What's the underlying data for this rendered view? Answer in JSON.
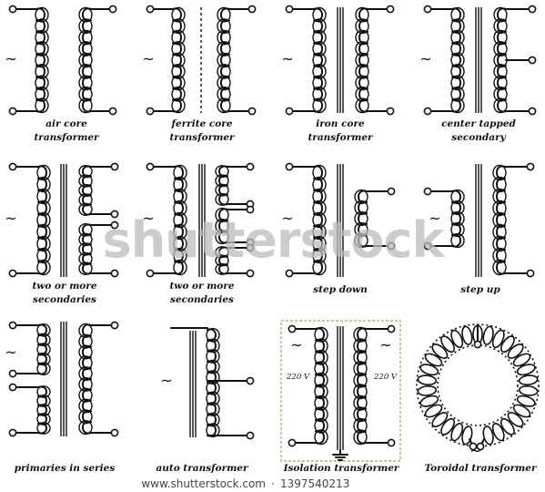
{
  "captions": {
    "air_core": [
      "air core",
      "transformer"
    ],
    "ferrite_core": [
      "ferrite core",
      "transformer"
    ],
    "iron_core": [
      "iron core",
      "transformer"
    ],
    "center_tapped": [
      "center tapped",
      "secondary"
    ],
    "two_or_more_1": [
      "two or more",
      "secondaries"
    ],
    "two_or_more_2": [
      "two or more",
      "secondaries"
    ],
    "step_down": [
      "step down"
    ],
    "step_up": [
      "step up"
    ],
    "primaries_in_series": [
      "primaries in series"
    ],
    "auto_transformer": [
      "auto transformer"
    ],
    "isolation_transformer": [
      "Isolation transformer"
    ],
    "toroidal_transformer": [
      "Toroidal transformer"
    ]
  },
  "isolation": {
    "left_voltage": "220 V",
    "right_voltage": "220 V"
  },
  "ac_symbol": "~",
  "watermark": "shutterstock",
  "footer": {
    "left": "www.shutterstock.com",
    "separator": "·",
    "right": "1397540213"
  },
  "colors": {
    "ink": "#111111",
    "background": "#ffffff",
    "isolation_frame": "#b8956a",
    "watermark": "#bcbcbc"
  }
}
